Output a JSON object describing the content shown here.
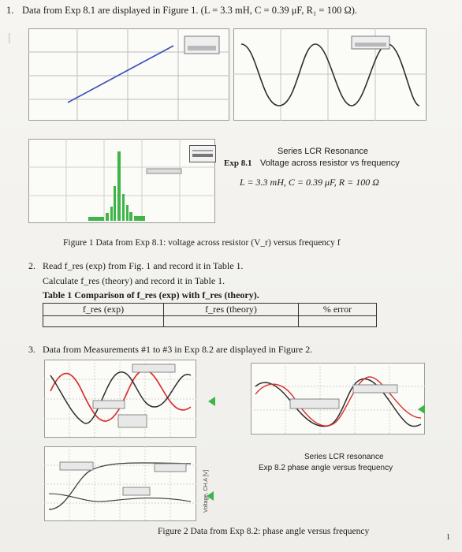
{
  "items": {
    "q1_num": "1.",
    "q1_text": "Data from Exp 8.1 are displayed in Figure 1. (L = 3.3 mH, C = 0.39 μF, R₁ = 100 Ω).",
    "fig1_legend_title": "Series LCR Resonance",
    "fig1_legend_exp": "Exp 8.1",
    "fig1_legend_desc": "Voltage across resistor vs frequency",
    "fig1_legend_params": "L = 3.3 mH,  C = 0.39 μF,  R = 100 Ω",
    "fig1_caption": "Figure 1 Data from Exp 8.1: voltage across resistor (V_r) versus frequency f",
    "q2_num": "2.",
    "q2_line1": "Read f_res (exp) from Fig. 1 and record it in Table 1.",
    "q2_line2": "Calculate f_res (theory) and record it in Table 1.",
    "table_title": "Table 1 Comparison of f_res (exp) with f_res (theory).",
    "table_headers": [
      "f_res (exp)",
      "f_res (theory)",
      "% error"
    ],
    "q3_num": "3.",
    "q3_text": "Data from Measurements #1 to #3 in Exp 8.2 are displayed in Figure 2.",
    "fig2_legend_title": "Series LCR resonance",
    "fig2_legend_desc": "Exp 8.2 phase angle versus frequency",
    "fig2_caption": "Figure 2 Data from Exp 8.2: phase angle versus frequency",
    "page_number": "1"
  },
  "colors": {
    "paper": "#f3f2ee",
    "ink": "#1c1c1c",
    "plot_green": "#3fb548",
    "plot_red": "#d9302c",
    "plot_blue": "#3a4fb8",
    "grid": "#b9b9b9"
  }
}
